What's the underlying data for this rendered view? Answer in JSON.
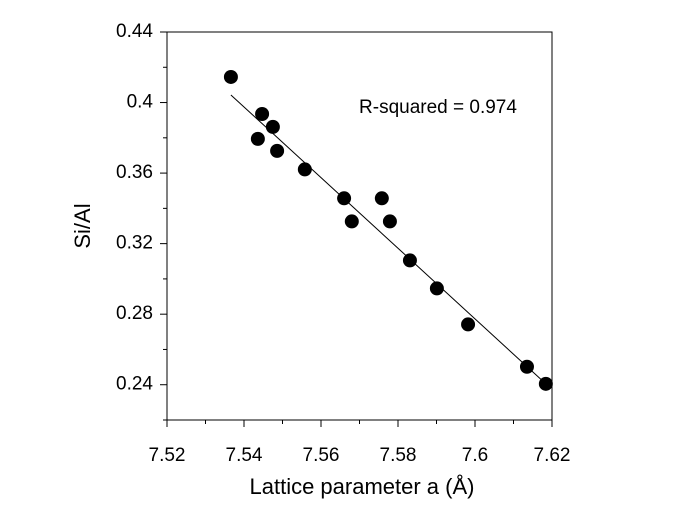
{
  "chart_data": {
    "type": "scatter",
    "x_label": "Lattice parameter a (Å)",
    "y_label": "Si/Al",
    "annotation": "R-squared = 0.974",
    "color": "#000000",
    "x": [
      7.5366,
      7.5447,
      7.5436,
      7.5475,
      7.5486,
      7.5558,
      7.566,
      7.568,
      7.5758,
      7.5779,
      7.5831,
      7.5901,
      7.5982,
      7.6135,
      7.6184
    ],
    "values": [
      0.4145,
      0.3935,
      0.3794,
      0.3862,
      0.3726,
      0.3621,
      0.3457,
      0.3326,
      0.3457,
      0.3326,
      0.3105,
      0.2946,
      0.2742,
      0.2502,
      0.2405
    ],
    "fit": {
      "x": [
        7.5366,
        7.6184
      ],
      "y": [
        0.4043,
        0.2405
      ]
    },
    "xlim": [
      7.52,
      7.62
    ],
    "ylim": [
      0.22,
      0.44
    ],
    "xticks": [
      7.52,
      7.54,
      7.56,
      7.58,
      7.6,
      7.62
    ],
    "yticks": [
      0.24,
      0.28,
      0.32,
      0.36,
      0.4,
      0.44
    ],
    "xminorticks": [
      7.53,
      7.55,
      7.57,
      7.59,
      7.61
    ],
    "yminorticks": [
      0.22,
      0.26,
      0.3,
      0.34,
      0.38,
      0.42
    ]
  }
}
